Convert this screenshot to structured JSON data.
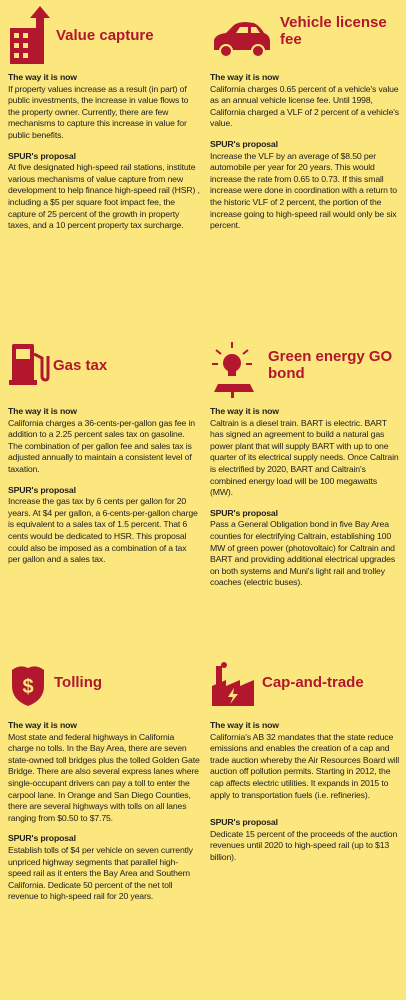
{
  "sections": [
    {
      "title": "Value capture",
      "now_heading": "The way it is now",
      "now_text": "If property values increase as a result (in part) of public investments, the increase in value flows to the property owner. Currently, there are few mechanisms to capture this increase in value for public benefits.",
      "proposal_heading": "SPUR's proposal",
      "proposal_text": "At five designated high-speed rail stations, institute various mechanisms of value capture from new development to help finance high-speed rail (HSR) , including a $5 per square foot impact fee, the capture of 25 percent of the growth in property taxes, and a 10 percent property tax surcharge."
    },
    {
      "title": "Vehicle license fee",
      "now_heading": "The way it is now",
      "now_text": "California charges 0.65 percent of a vehicle's value as an annual vehicle license fee. Until 1998, California charged a VLF of 2 percent of a vehicle's value.",
      "proposal_heading": "SPUR's proposal",
      "proposal_text": "Increase the VLF by an average of $8.50 per automobile per year for 20 years. This would increase the rate from 0.65 to 0.73. If this small increase were done in coordination with a return to the historic VLF of 2 percent, the portion of the increase going to high-speed rail would only be six percent."
    },
    {
      "title": "Gas tax",
      "now_heading": "The way it is now",
      "now_text": "California charges a 36-cents-per-gallon gas fee in addition to a 2.25 percent sales tax on gasoline. The combination of per gallon fee and sales tax is adjusted annually to maintain a consistent level of taxation.",
      "proposal_heading": "SPUR's proposal",
      "proposal_text": "Increase the gas tax by 6 cents per gallon for 20 years. At $4 per gallon, a 6-cents-per-gallon charge is equivalent to a sales tax of 1.5 percent. That 6 cents would be dedicated to HSR. This proposal could also be imposed as a combination of a tax per gallon and a sales tax."
    },
    {
      "title": "Green energy GO bond",
      "now_heading": "The way it is now",
      "now_text": "Caltrain is a diesel train. BART is electric. BART has signed an agreement to build a natural gas power plant that will supply BART with up to one quarter of its electrical supply needs. Once Caltrain is electrified by 2020, BART and Caltrain's combined energy load will be 100 megawatts (MW).",
      "proposal_heading": "SPUR's proposal",
      "proposal_text": "Pass a General Obligation bond in five Bay Area counties for electrifying Caltrain, establishing 100 MW of green power (photovoltaic) for Caltrain and BART and providing additional electrical upgrades on both systems and Muni's light rail and trolley coaches (electric buses)."
    },
    {
      "title": "Tolling",
      "now_heading": "The way it is now",
      "now_text": "Most state and federal highways in California charge no tolls. In the Bay Area, there are seven state-owned toll bridges plus the tolled Golden Gate Bridge. There are also several express lanes where single-occupant drivers can pay a toll to enter the carpool lane. In Orange and San Diego Counties, there are several highways with tolls on all lanes ranging from $0.50 to $7.75.",
      "proposal_heading": "SPUR's proposal",
      "proposal_text": "Establish tolls of $4 per vehicle on seven currently unpriced highway segments that parallel high-speed rail as it enters the Bay Area and Southern California. Dedicate 50 percent of the net toll revenue to high-speed rail for 20 years."
    },
    {
      "title": "Cap-and-trade",
      "now_heading": "The way it is now",
      "now_text": "California's AB 32 mandates that the state reduce emissions and enables the creation of a cap and trade auction whereby the Air Resources Board will auction off pollution permits. Starting in 2012, the cap affects electric utilities. It expands in 2015 to apply to transportation fuels (i.e. refineries).",
      "proposal_heading": "SPUR's proposal",
      "proposal_text": "Dedicate 15 percent of the proceeds of the auction revenues until 2020 to high-speed rail (up to $13 billion)."
    }
  ]
}
